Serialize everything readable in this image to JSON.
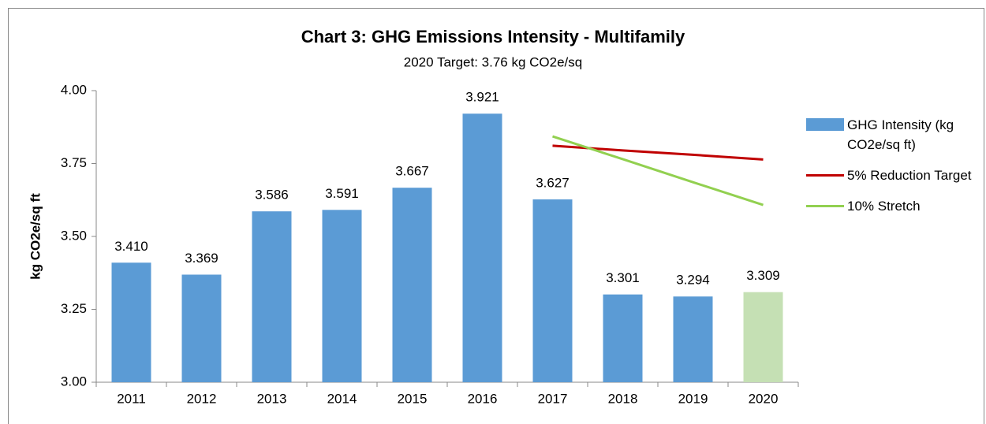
{
  "chart_data": {
    "type": "bar",
    "title": "Chart 3: GHG Emissions Intensity - Multifamily",
    "subtitle": "2020 Target:  3.76 kg CO2e/sq",
    "y_label": "kg CO2e/sq ft",
    "categories": [
      "2011",
      "2012",
      "2013",
      "2014",
      "2015",
      "2016",
      "2017",
      "2018",
      "2019",
      "2020"
    ],
    "series": [
      {
        "name": "GHG Intensity (kg CO2e/sq ft)",
        "type": "bar",
        "color": "#5b9bd5",
        "colors": [
          "#5b9bd5",
          "#5b9bd5",
          "#5b9bd5",
          "#5b9bd5",
          "#5b9bd5",
          "#5b9bd5",
          "#5b9bd5",
          "#5b9bd5",
          "#5b9bd5",
          "#c5e0b4"
        ],
        "values": [
          3.41,
          3.369,
          3.586,
          3.591,
          3.667,
          3.921,
          3.627,
          3.301,
          3.294,
          3.309
        ],
        "value_labels": [
          "3.410",
          "3.369",
          "3.586",
          "3.591",
          "3.667",
          "3.921",
          "3.627",
          "3.301",
          "3.294",
          "3.309"
        ]
      },
      {
        "name": "5%  Reduction Target",
        "type": "line",
        "color": "#c00000",
        "values": [
          null,
          null,
          null,
          null,
          null,
          null,
          3.811,
          3.795,
          3.78,
          3.764
        ]
      },
      {
        "name": "10% Stretch",
        "type": "line",
        "color": "#92d050",
        "values": [
          null,
          null,
          null,
          null,
          null,
          null,
          3.843,
          3.765,
          3.686,
          3.608
        ]
      }
    ],
    "ylim": [
      3,
      4
    ],
    "yticks": [
      {
        "value": 3,
        "label": "3.00"
      },
      {
        "value": 3.25,
        "label": "3.25"
      },
      {
        "value": 3.5,
        "label": "3.50"
      },
      {
        "value": 3.75,
        "label": "3.75"
      },
      {
        "value": 4,
        "label": "4.00"
      }
    ],
    "grid": false,
    "legend": "right"
  }
}
